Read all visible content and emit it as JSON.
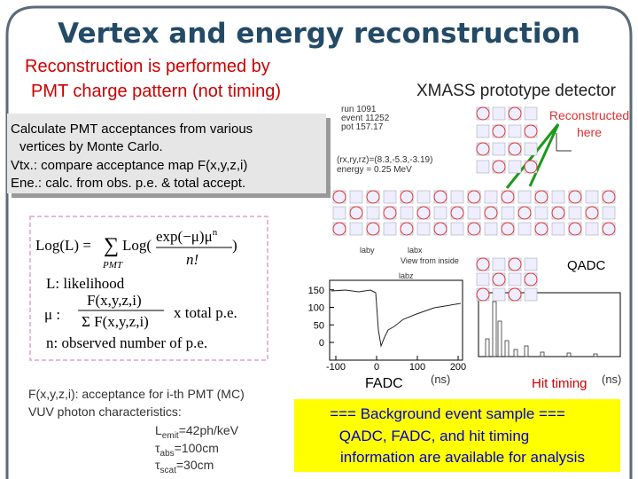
{
  "title": "Vertex and energy reconstruction",
  "subtitle": [
    "Reconstruction is performed by",
    "PMT charge pattern (not timing)"
  ],
  "method_box": [
    "Calculate PMT acceptances from various",
    "vertices by Monte Carlo.",
    "Vtx.: compare acceptance map F(x,y,z,i)",
    "Ene.: calc. from obs. p.e. & total accept."
  ],
  "formula": {
    "lhs": "Log(L) =",
    "sum": "∑",
    "sum_sub": "PMT",
    "log": "Log(",
    "numerator": "exp(−μ)μ",
    "exponent": "n",
    "denominator": "n!",
    "close": ")",
    "likelihood": "L: likelihood",
    "mu": "μ :",
    "mu_numerator": "F(x,y,z,i)",
    "mu_denominator": "Σ F(x,y,z,i)",
    "mu_factor": "x total p.e.",
    "n_def": "n: observed number of p.e."
  },
  "notes": {
    "lines": [
      "F(x,y,z,i): acceptance for i-th PMT (MC)",
      "VUV photon characteristics:"
    ],
    "emit": {
      "symbol": "L",
      "sub": "emit",
      "value": "=42ph/keV"
    },
    "abs": {
      "symbol": "τ",
      "sub": "abs",
      "value": "=100cm"
    },
    "scat": {
      "symbol": "τ",
      "sub": "scat",
      "value": "=30cm"
    }
  },
  "detector": {
    "title": "XMASS prototype detector",
    "info": [
      "run 1091",
      "event 11252",
      "pot 157.17",
      "(rx,ry,rz)=(8.3,-5.3,-3.19)",
      "energy = 0.25 MeV"
    ],
    "annotation": [
      "Reconstructed",
      "here"
    ],
    "labels": {
      "laby": "laby",
      "labx": "labx",
      "labz": "labz",
      "view": "View from inside"
    },
    "qadc": "QADC",
    "fadc": {
      "label": "FADC",
      "yticks": [
        0,
        50,
        100,
        150
      ],
      "xticks": [
        -100,
        0,
        100,
        200
      ],
      "unit": "(ns)"
    },
    "hit_timing": {
      "label": "Hit timing",
      "unit": "(ns)"
    }
  },
  "background": [
    "=== Background event sample ===",
    "QADC, FADC, and hit timing",
    "information are available for analysis"
  ]
}
